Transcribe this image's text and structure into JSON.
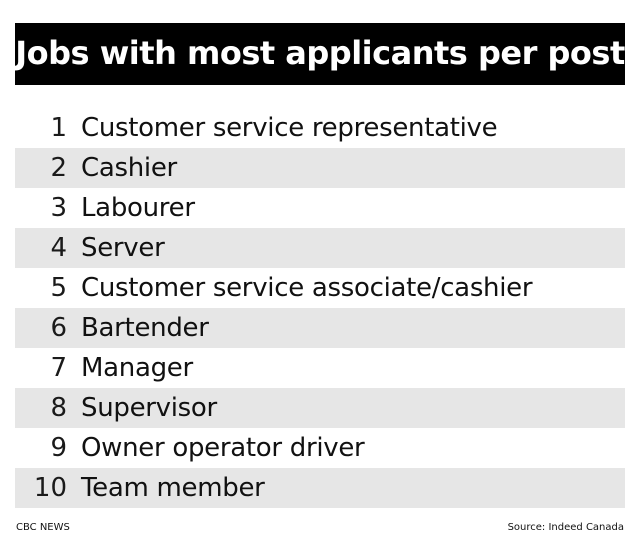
{
  "title": "Jobs with most applicants per post",
  "items": [
    {
      "rank": "1",
      "job": "Customer service representative"
    },
    {
      "rank": "2",
      "job": "Cashier"
    },
    {
      "rank": "3",
      "job": "Labourer"
    },
    {
      "rank": "4",
      "job": "Server"
    },
    {
      "rank": "5",
      "job": "Customer service associate/cashier"
    },
    {
      "rank": "6",
      "job": "Bartender"
    },
    {
      "rank": "7",
      "job": "Manager"
    },
    {
      "rank": "8",
      "job": "Supervisor"
    },
    {
      "rank": "9",
      "job": "Owner operator driver"
    },
    {
      "rank": "10",
      "job": "Team member"
    }
  ],
  "footer": {
    "brand": "CBC NEWS",
    "source": "Source: Indeed Canada"
  },
  "colors": {
    "title_bg": "#000000",
    "title_text": "#ffffff",
    "row_shade": "#e6e6e6"
  }
}
